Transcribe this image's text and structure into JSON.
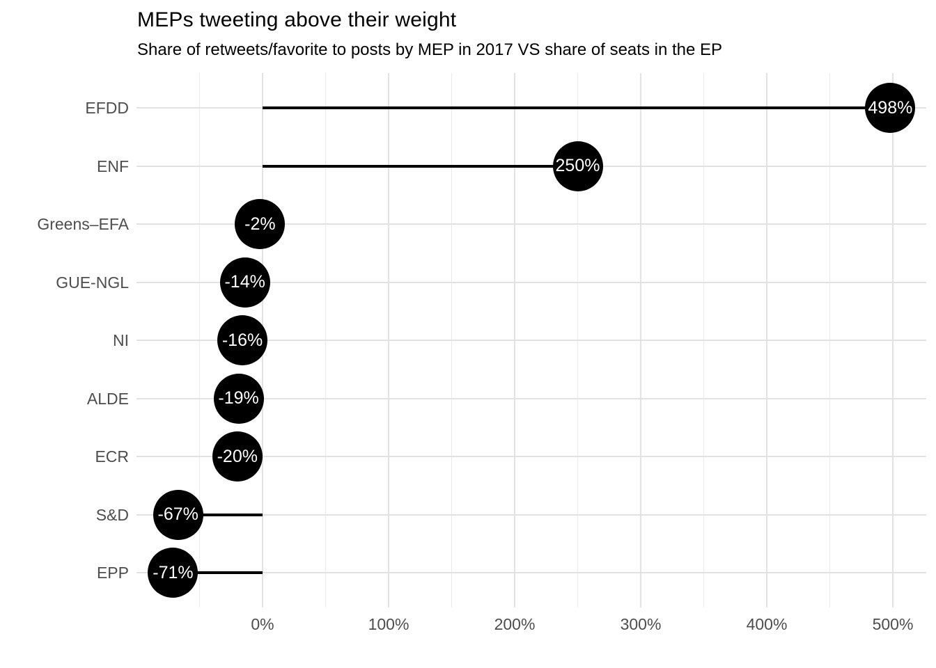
{
  "header": {
    "title": "MEPs tweeting above their weight",
    "subtitle": "Share of retweets/favorite to posts by MEP in 2017 VS share of seats in the EP"
  },
  "chart_data": {
    "type": "scatter",
    "variant": "lollipop",
    "orientation": "horizontal",
    "title": "MEPs tweeting above their weight",
    "subtitle": "Share of retweets/favorite to posts by MEP in 2017 VS share of seats in the EP",
    "xlabel": "",
    "ylabel": "",
    "categories": [
      "EFDD",
      "ENF",
      "Greens–EFA",
      "GUE-NGL",
      "NI",
      "ALDE",
      "ECR",
      "S&D",
      "EPP"
    ],
    "values": [
      498,
      250,
      -2,
      -14,
      -16,
      -19,
      -20,
      -67,
      -71
    ],
    "point_labels": [
      "498%",
      "250%",
      "-2%",
      "-14%",
      "-16%",
      "-19%",
      "-20%",
      "-67%",
      "-71%"
    ],
    "baseline_value": 0,
    "xlim": [
      -100,
      527
    ],
    "x_ticks": {
      "values": [
        0,
        100,
        200,
        300,
        400,
        500
      ],
      "labels": [
        "0%",
        "100%",
        "200%",
        "300%",
        "400%",
        "500%"
      ]
    },
    "x_minor_ticks": [
      -50,
      50,
      150,
      250,
      350,
      450
    ],
    "grid": true,
    "legend": "none",
    "colors": {
      "background": "#ffffff",
      "point_fill": "#000000",
      "point_text": "#ffffff",
      "stem": "#000000",
      "grid_major": "#e2e2e2",
      "grid_minor": "#eaeaea",
      "axis_text": "#4d4d4d",
      "title_text": "#000000"
    }
  }
}
